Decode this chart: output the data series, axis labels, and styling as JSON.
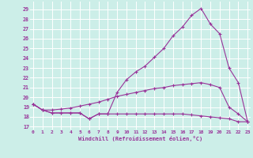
{
  "xlabel": "Windchill (Refroidissement éolien,°C)",
  "background_color": "#cceee8",
  "grid_color": "#ffffff",
  "line_color": "#993399",
  "x_ticks": [
    0,
    1,
    2,
    3,
    4,
    5,
    6,
    7,
    8,
    9,
    10,
    11,
    12,
    13,
    14,
    15,
    16,
    17,
    18,
    19,
    20,
    21,
    22,
    23
  ],
  "y_ticks": [
    17,
    18,
    19,
    20,
    21,
    22,
    23,
    24,
    25,
    26,
    27,
    28,
    29
  ],
  "ylim": [
    16.7,
    29.8
  ],
  "xlim": [
    -0.3,
    23.3
  ],
  "series": [
    {
      "x": [
        0,
        1,
        2,
        3,
        4,
        5,
        6,
        7,
        8,
        9,
        10,
        11,
        12,
        13,
        14,
        15,
        16,
        17,
        18,
        19,
        20,
        21,
        22,
        23
      ],
      "y": [
        19.3,
        18.7,
        18.4,
        18.4,
        18.4,
        18.4,
        17.8,
        18.3,
        18.3,
        18.3,
        18.3,
        18.3,
        18.3,
        18.3,
        18.3,
        18.3,
        18.3,
        18.2,
        18.1,
        18.0,
        17.9,
        17.8,
        17.5,
        17.5
      ]
    },
    {
      "x": [
        0,
        1,
        2,
        3,
        4,
        5,
        6,
        7,
        8,
        9,
        10,
        11,
        12,
        13,
        14,
        15,
        16,
        17,
        18,
        19,
        20,
        21,
        22,
        23
      ],
      "y": [
        19.3,
        18.7,
        18.4,
        18.4,
        18.4,
        18.4,
        17.8,
        18.3,
        18.3,
        20.5,
        21.8,
        22.6,
        23.2,
        24.1,
        25.0,
        26.3,
        27.2,
        28.4,
        29.1,
        27.5,
        26.5,
        23.0,
        21.5,
        17.5
      ]
    },
    {
      "x": [
        0,
        1,
        2,
        3,
        4,
        5,
        6,
        7,
        8,
        9,
        10,
        11,
        12,
        13,
        14,
        15,
        16,
        17,
        18,
        19,
        20,
        21,
        22,
        23
      ],
      "y": [
        19.3,
        18.7,
        18.7,
        18.8,
        18.9,
        19.1,
        19.3,
        19.5,
        19.8,
        20.1,
        20.3,
        20.5,
        20.7,
        20.9,
        21.0,
        21.2,
        21.3,
        21.4,
        21.5,
        21.3,
        21.0,
        19.0,
        18.3,
        17.5
      ]
    }
  ]
}
